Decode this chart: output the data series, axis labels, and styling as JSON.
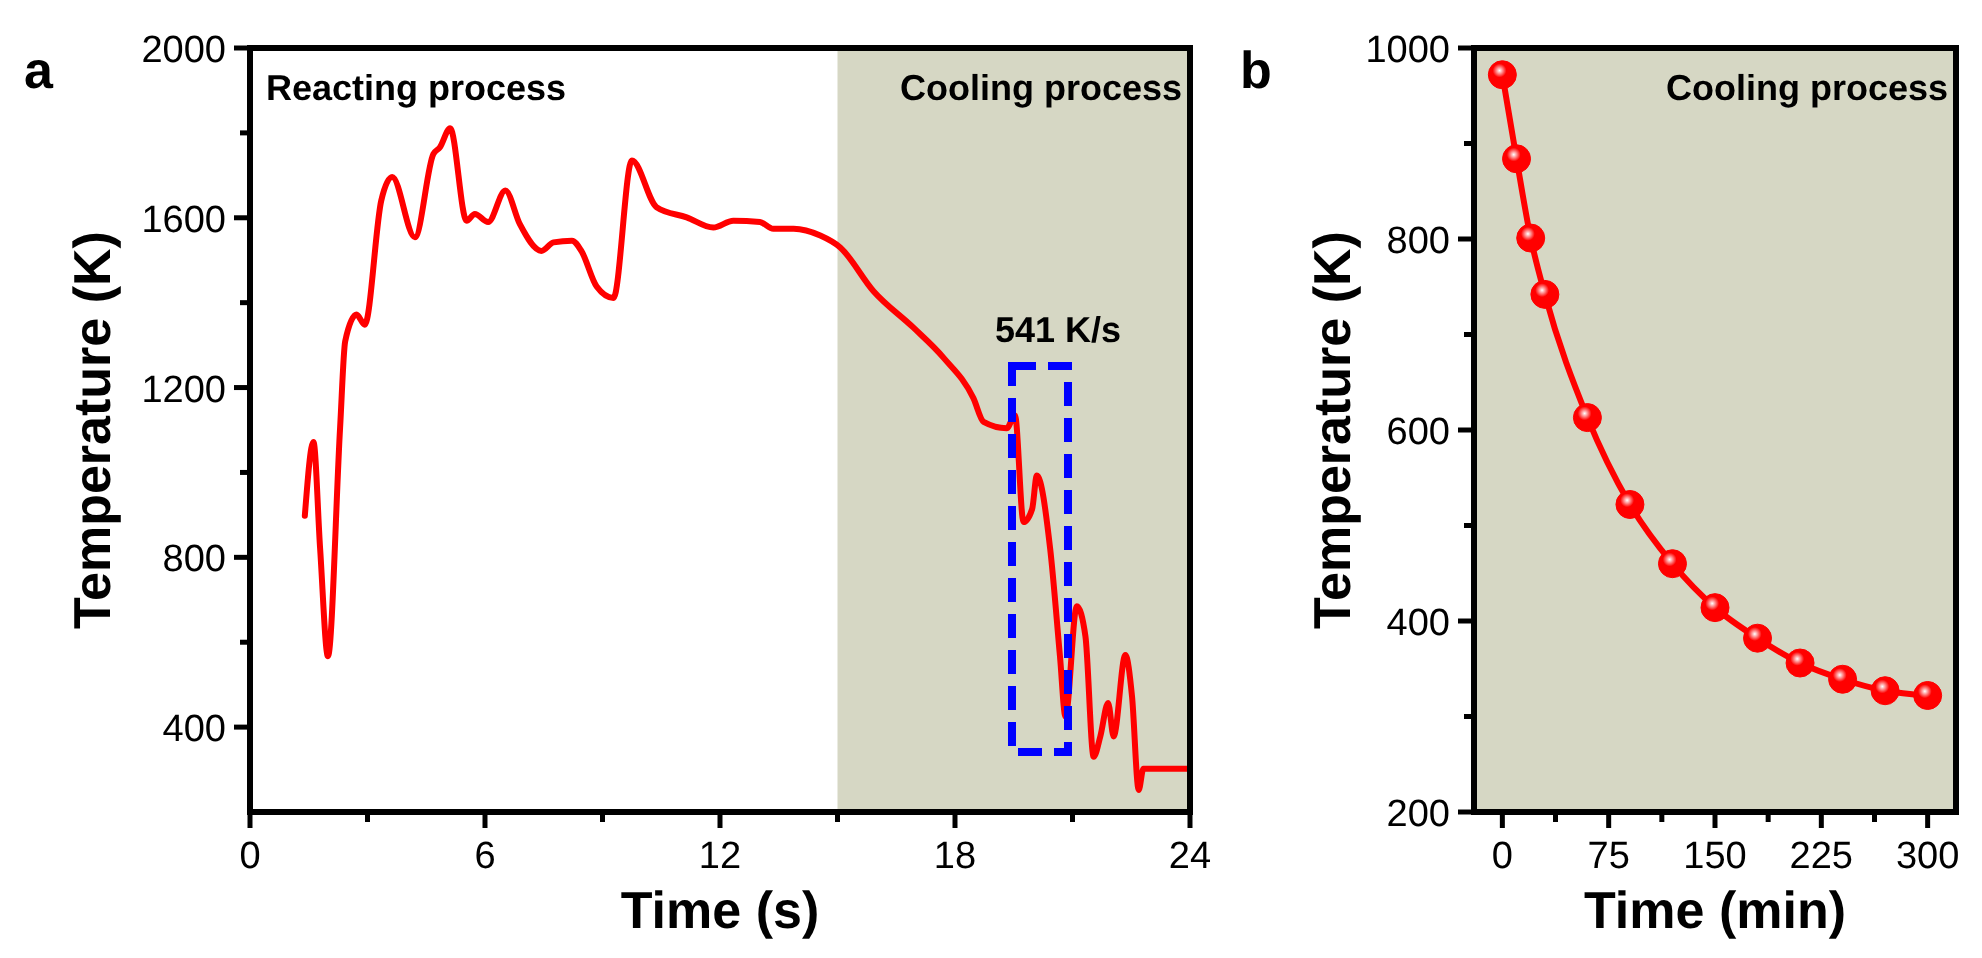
{
  "chart_data": [
    {
      "type": "line",
      "title": "a",
      "xlabel": "Time (s)",
      "ylabel": "Temperature (K)",
      "xlim": [
        0,
        24
      ],
      "ylim": [
        200,
        2000
      ],
      "xticks": [
        0,
        {
          "value": 3,
          "label": null
        },
        6,
        {
          "value": 9,
          "label": null
        },
        12,
        {
          "value": 15,
          "label": null
        },
        18,
        {
          "value": 21,
          "label": null
        },
        24
      ],
      "yticks": [
        {
          "value": 400,
          "label": "400"
        },
        {
          "value": 600,
          "label": null
        },
        800,
        {
          "value": 1000,
          "label": null
        },
        1200,
        {
          "value": 1400,
          "label": null
        },
        1600,
        {
          "value": 1800,
          "label": null
        },
        2000
      ],
      "grid": false,
      "marker": "none",
      "line_style": "solid",
      "bands": [
        {
          "axis": "x",
          "from": 15,
          "to": 24,
          "label": "Cooling process",
          "color": "#d6d7c4"
        }
      ],
      "annotations": [
        "Reacting process",
        "541 K/s"
      ],
      "series": [
        {
          "color": "#ff0000",
          "x": [
            1.4,
            1.62,
            1.79,
            1.99,
            2.3,
            2.43,
            2.72,
            2.93,
            3.35,
            3.63,
            4.21,
            4.68,
            4.85,
            5.11,
            5.53,
            5.74,
            6.08,
            6.52,
            6.89,
            7.44,
            7.75,
            8.22,
            8.46,
            8.85,
            9.28,
            9.75,
            10.38,
            11.15,
            11.83,
            12.34,
            13.02,
            13.36,
            13.88,
            14.56,
            15.07,
            15.92,
            16.94,
            17.71,
            18.47,
            18.73,
            19.32,
            19.53,
            19.75,
            19.97,
            20.09,
            20.43,
            20.68,
            20.82,
            21.11,
            21.33,
            21.54,
            21.71,
            21.91,
            22.05,
            22.35,
            22.52,
            22.69,
            22.81,
            23.92
          ],
          "values": [
            898,
            1072,
            821,
            567,
            1105,
            1309,
            1372,
            1348,
            1640,
            1696,
            1554,
            1750,
            1766,
            1811,
            1593,
            1609,
            1590,
            1664,
            1585,
            1522,
            1542,
            1546,
            1522,
            1438,
            1411,
            1735,
            1625,
            1601,
            1577,
            1593,
            1590,
            1574,
            1574,
            1558,
            1530,
            1427,
            1341,
            1270,
            1175,
            1119,
            1104,
            1135,
            883,
            914,
            993,
            820,
            567,
            425,
            685,
            614,
            330,
            378,
            457,
            378,
            570,
            472,
            252,
            302,
            302
          ]
        }
      ]
    },
    {
      "type": "line",
      "title": "b",
      "xlabel": "Time (min)",
      "ylabel": "Temperature (K)",
      "xlim": [
        -20,
        320
      ],
      "ylim": [
        200,
        1000
      ],
      "xticks": [
        0,
        {
          "value": 37.5,
          "label": null
        },
        75,
        {
          "value": 112.5,
          "label": null
        },
        150,
        {
          "value": 187.5,
          "label": null
        },
        225,
        {
          "value": 262.5,
          "label": null
        },
        300
      ],
      "yticks": [
        200,
        {
          "value": 300,
          "label": null
        },
        400,
        {
          "value": 500,
          "label": null
        },
        600,
        {
          "value": 700,
          "label": null
        },
        800,
        {
          "value": 900,
          "label": null
        },
        1000
      ],
      "grid": false,
      "marker": "circle",
      "line_style": "solid",
      "bands": [
        {
          "axis": "x",
          "from": -20,
          "to": 320,
          "label": "Cooling process",
          "color": "#d6d7c4"
        }
      ],
      "series": [
        {
          "color": "#ff0000",
          "x": [
            0,
            10,
            20,
            30,
            60,
            90,
            120,
            150,
            180,
            210,
            240,
            270,
            300
          ],
          "values": [
            972,
            884,
            801,
            742,
            613,
            522,
            460,
            414,
            382,
            356,
            339,
            327,
            322
          ]
        }
      ]
    }
  ]
}
